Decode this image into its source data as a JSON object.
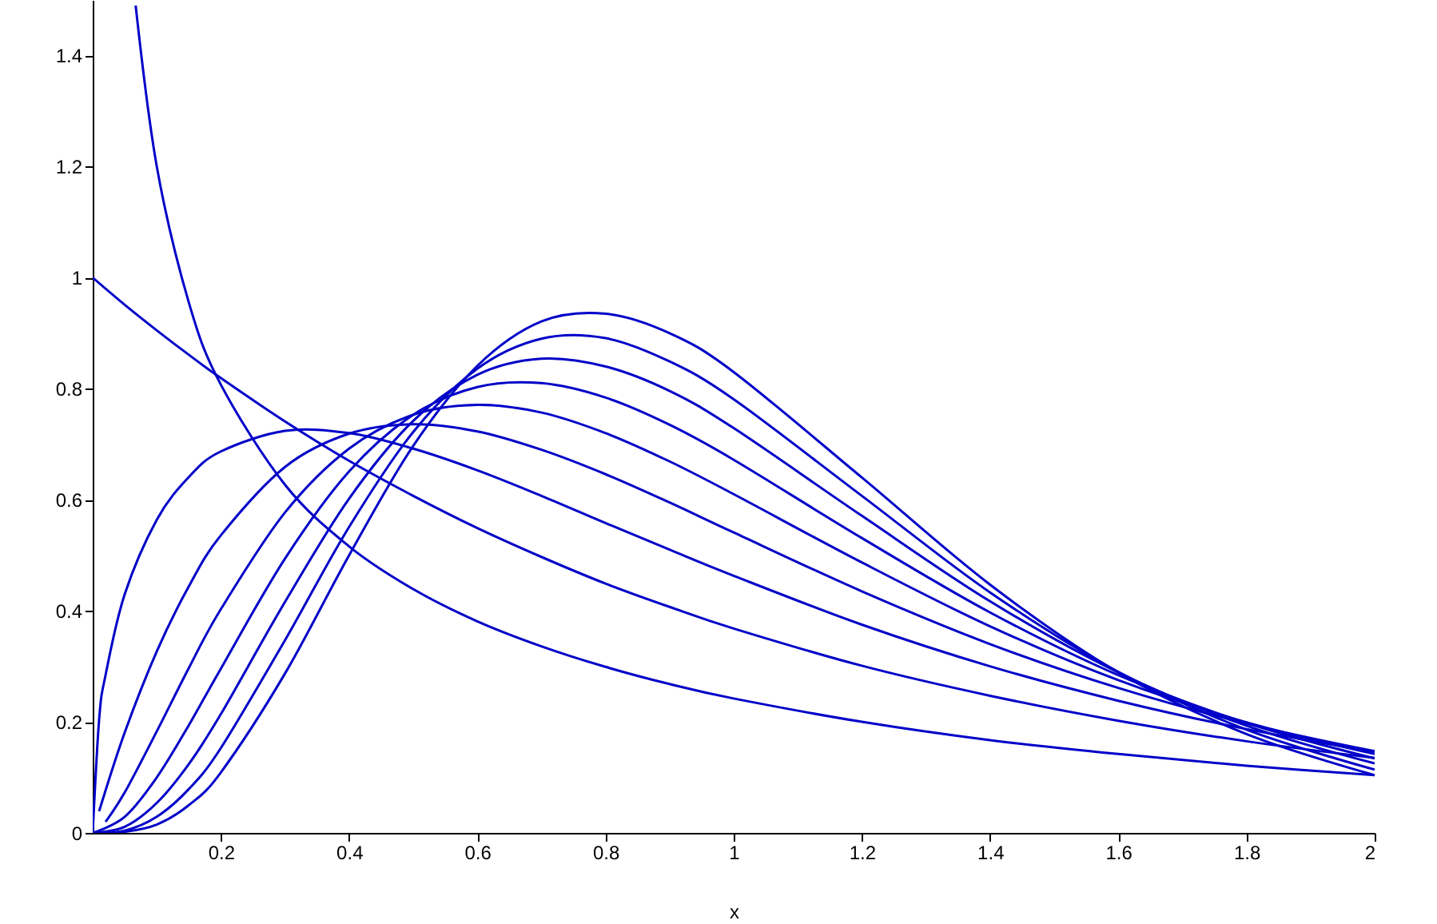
{
  "chart_data": {
    "type": "line",
    "xlabel": "x",
    "xlim": [
      0,
      2
    ],
    "ylim": [
      0,
      1.5
    ],
    "xticks": [
      0.2,
      0.4,
      0.6,
      0.8,
      1,
      1.2,
      1.4,
      1.6,
      1.8,
      2
    ],
    "yticks": [
      0,
      0.2,
      0.4,
      0.6,
      0.8,
      1,
      1.2,
      1.4
    ],
    "grid": false,
    "series": [
      {
        "color": "#0000c8",
        "x": [
          0.067,
          0.1,
          0.15,
          0.2,
          0.3,
          0.4,
          0.5,
          0.6,
          0.7,
          0.8,
          0.9,
          1,
          1.2,
          1.4,
          1.6,
          1.8,
          2
        ],
        "values": [
          1.49,
          1.2,
          0.955,
          0.807,
          0.627,
          0.516,
          0.439,
          0.381,
          0.336,
          0.299,
          0.268,
          0.242,
          0.2,
          0.167,
          0.142,
          0.121,
          0.104
        ]
      },
      {
        "color": "#0000c8",
        "x": [
          0,
          0.05,
          0.1,
          0.15,
          0.2,
          0.3,
          0.4,
          0.5,
          0.6,
          0.7,
          0.8,
          0.9,
          1,
          1.2,
          1.4,
          1.6,
          1.8,
          2
        ],
        "values": [
          1,
          0.951,
          0.905,
          0.861,
          0.819,
          0.741,
          0.67,
          0.607,
          0.549,
          0.497,
          0.449,
          0.407,
          0.368,
          0.301,
          0.247,
          0.202,
          0.165,
          0.135
        ]
      },
      {
        "color": "#0000c8",
        "x": [
          0,
          0.01,
          0.02,
          0.05,
          0.1,
          0.15,
          0.2,
          0.3,
          0.4,
          0.5,
          0.6,
          0.7,
          0.8,
          0.9,
          1,
          1.2,
          1.4,
          1.6,
          1.8,
          2
        ],
        "values": [
          0,
          0.204,
          0.284,
          0.43,
          0.564,
          0.641,
          0.687,
          0.724,
          0.72,
          0.692,
          0.653,
          0.607,
          0.558,
          0.51,
          0.463,
          0.375,
          0.3,
          0.238,
          0.187,
          0.146
        ]
      },
      {
        "color": "#0000c8",
        "x": [
          0.01,
          0.05,
          0.1,
          0.15,
          0.2,
          0.3,
          0.4,
          0.5,
          0.6,
          0.7,
          0.8,
          0.9,
          1,
          1.2,
          1.4,
          1.6,
          1.8,
          2
        ],
        "values": [
          0.039,
          0.181,
          0.327,
          0.444,
          0.536,
          0.659,
          0.719,
          0.736,
          0.723,
          0.69,
          0.646,
          0.595,
          0.541,
          0.435,
          0.34,
          0.261,
          0.197,
          0.147
        ]
      },
      {
        "color": "#0000c8",
        "x": [
          0.02,
          0.05,
          0.1,
          0.15,
          0.2,
          0.3,
          0.4,
          0.5,
          0.6,
          0.7,
          0.8,
          0.9,
          1,
          1.2,
          1.4,
          1.6,
          1.8,
          2
        ],
        "values": [
          0.02,
          0.073,
          0.183,
          0.297,
          0.403,
          0.577,
          0.692,
          0.753,
          0.771,
          0.757,
          0.72,
          0.669,
          0.61,
          0.487,
          0.372,
          0.275,
          0.199,
          0.142
        ]
      },
      {
        "color": "#0000c8",
        "x": [
          0,
          0.05,
          0.1,
          0.15,
          0.2,
          0.3,
          0.4,
          0.5,
          0.6,
          0.7,
          0.8,
          0.9,
          1,
          1.2,
          1.4,
          1.6,
          1.8,
          2
        ],
        "values": [
          0,
          0.029,
          0.1,
          0.194,
          0.296,
          0.494,
          0.651,
          0.753,
          0.803,
          0.81,
          0.784,
          0.735,
          0.672,
          0.531,
          0.397,
          0.284,
          0.198,
          0.134
        ]
      },
      {
        "color": "#0000c8",
        "x": [
          0,
          0.05,
          0.1,
          0.15,
          0.2,
          0.3,
          0.4,
          0.5,
          0.6,
          0.7,
          0.8,
          0.9,
          1,
          1.2,
          1.4,
          1.6,
          1.8,
          2
        ],
        "values": [
          0,
          0.011,
          0.054,
          0.124,
          0.214,
          0.416,
          0.602,
          0.742,
          0.825,
          0.854,
          0.84,
          0.796,
          0.729,
          0.571,
          0.417,
          0.289,
          0.193,
          0.125
        ]
      },
      {
        "color": "#0000c8",
        "x": [
          0,
          0.05,
          0.1,
          0.15,
          0.2,
          0.3,
          0.4,
          0.5,
          0.6,
          0.7,
          0.8,
          0.9,
          1,
          1.2,
          1.4,
          1.6,
          1.8,
          2
        ],
        "values": [
          0,
          0.004,
          0.029,
          0.079,
          0.153,
          0.347,
          0.551,
          0.722,
          0.836,
          0.89,
          0.891,
          0.849,
          0.781,
          0.607,
          0.433,
          0.29,
          0.186,
          0.114
        ]
      },
      {
        "color": "#0000c8",
        "x": [
          0,
          0.05,
          0.1,
          0.15,
          0.2,
          0.3,
          0.4,
          0.5,
          0.6,
          0.7,
          0.8,
          0.9,
          1,
          1.2,
          1.4,
          1.6,
          1.8,
          2
        ],
        "values": [
          0,
          0.002,
          0.015,
          0.05,
          0.109,
          0.287,
          0.5,
          0.697,
          0.841,
          0.921,
          0.935,
          0.9,
          0.83,
          0.64,
          0.447,
          0.289,
          0.178,
          0.104
        ]
      }
    ]
  }
}
